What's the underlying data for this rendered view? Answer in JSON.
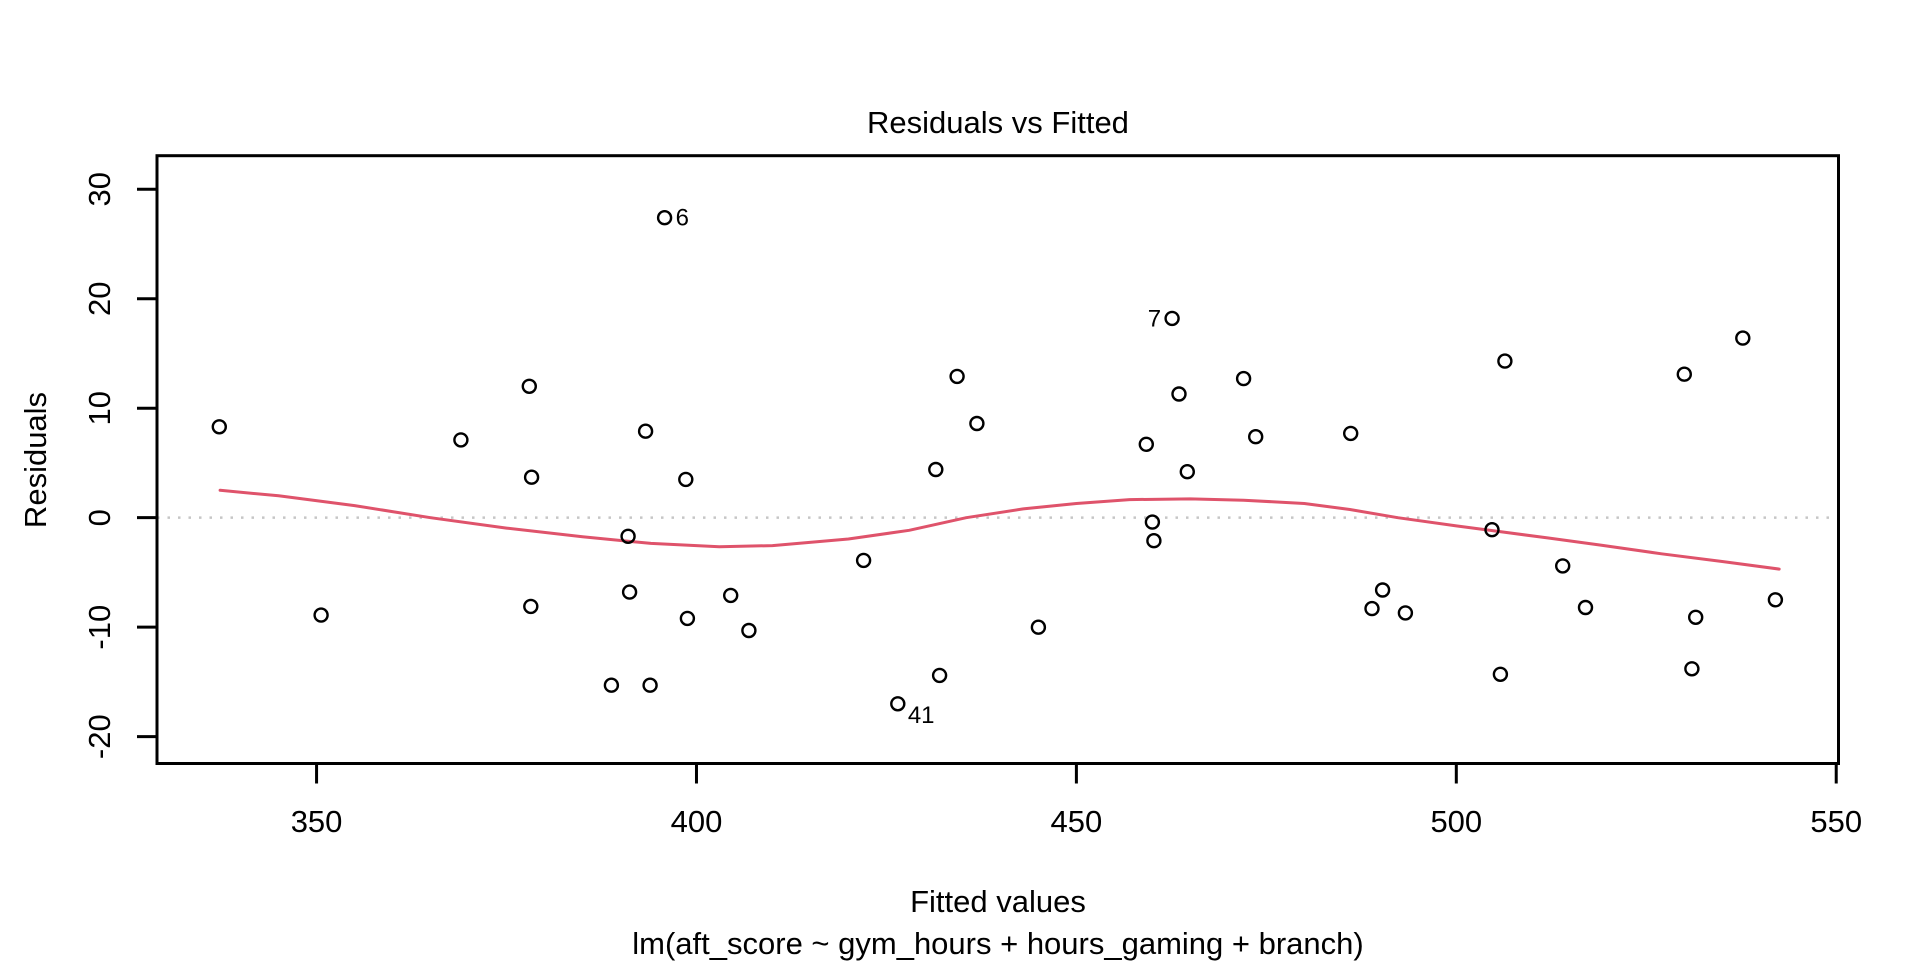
{
  "figure": {
    "title": "Residuals vs Fitted",
    "xlabel": "Fitted values",
    "ylabel": "Residuals",
    "caption": "lm(aft_score ~ gym_hours + hours_gaming + branch)"
  },
  "chart_data": {
    "type": "scatter",
    "title": "Residuals vs Fitted",
    "xlabel": "Fitted values",
    "ylabel": "Residuals",
    "caption": "lm(aft_score ~ gym_hours + hours_gaming + branch)",
    "x_ticks": [
      350,
      400,
      450,
      500,
      550
    ],
    "y_ticks": [
      -20,
      -10,
      0,
      10,
      20,
      30
    ],
    "xlim": [
      329.0,
      550.3
    ],
    "ylim": [
      -22.45,
      33.06
    ],
    "grid": false,
    "legend": null,
    "marker": {
      "shape": "open-circle",
      "color": "#000000",
      "radius_px": 6.5
    },
    "zero_line": {
      "y": 0,
      "style": "dotted",
      "color": "#c6c6c6"
    },
    "points": [
      [
        337.2,
        8.3
      ],
      [
        350.6,
        -8.9
      ],
      [
        369.0,
        7.1
      ],
      [
        378.0,
        12.0
      ],
      [
        378.2,
        -8.1
      ],
      [
        378.3,
        3.7
      ],
      [
        388.8,
        -15.3
      ],
      [
        391.0,
        -1.7
      ],
      [
        391.2,
        -6.8
      ],
      [
        393.3,
        7.9
      ],
      [
        393.9,
        -15.3
      ],
      [
        395.8,
        27.4
      ],
      [
        398.6,
        3.5
      ],
      [
        398.8,
        -9.2
      ],
      [
        404.5,
        -7.1
      ],
      [
        406.9,
        -10.3
      ],
      [
        422.0,
        -3.9
      ],
      [
        426.5,
        -17.0
      ],
      [
        431.5,
        4.4
      ],
      [
        432.0,
        -14.4
      ],
      [
        434.3,
        12.9
      ],
      [
        436.9,
        8.6
      ],
      [
        445.0,
        -10.0
      ],
      [
        459.2,
        6.7
      ],
      [
        460.0,
        -0.4
      ],
      [
        460.2,
        -2.1
      ],
      [
        462.6,
        18.2
      ],
      [
        463.5,
        11.3
      ],
      [
        464.6,
        4.2
      ],
      [
        472.0,
        12.7
      ],
      [
        473.6,
        7.4
      ],
      [
        486.1,
        7.7
      ],
      [
        488.9,
        -8.3
      ],
      [
        490.3,
        -6.6
      ],
      [
        493.3,
        -8.7
      ],
      [
        504.7,
        -1.1
      ],
      [
        505.8,
        -14.3
      ],
      [
        506.4,
        14.3
      ],
      [
        514.0,
        -4.4
      ],
      [
        517.0,
        -8.2
      ],
      [
        530.0,
        13.1
      ],
      [
        531.5,
        -9.1
      ],
      [
        531.0,
        -13.8
      ],
      [
        537.7,
        16.4
      ],
      [
        542.0,
        -7.5
      ]
    ],
    "labeled_points": [
      {
        "label": "6",
        "x": 395.8,
        "y": 27.4,
        "side": "right"
      },
      {
        "label": "7",
        "x": 462.6,
        "y": 18.2,
        "side": "left"
      },
      {
        "label": "41",
        "x": 426.5,
        "y": -17.0,
        "side": "right-below"
      }
    ],
    "smooth_line": {
      "name": "lowess",
      "color": "#df536b",
      "points": [
        [
          337.3,
          2.5
        ],
        [
          345,
          2.0
        ],
        [
          355,
          1.1
        ],
        [
          365,
          0.0
        ],
        [
          375,
          -0.95
        ],
        [
          385,
          -1.75
        ],
        [
          394,
          -2.35
        ],
        [
          403,
          -2.65
        ],
        [
          410,
          -2.55
        ],
        [
          420,
          -1.95
        ],
        [
          428,
          -1.15
        ],
        [
          435.5,
          0.0
        ],
        [
          443,
          0.8
        ],
        [
          450,
          1.3
        ],
        [
          457,
          1.65
        ],
        [
          465,
          1.72
        ],
        [
          472,
          1.6
        ],
        [
          480,
          1.3
        ],
        [
          486,
          0.75
        ],
        [
          492.3,
          0.0
        ],
        [
          500,
          -0.75
        ],
        [
          506,
          -1.3
        ],
        [
          512,
          -1.85
        ],
        [
          519,
          -2.5
        ],
        [
          527,
          -3.3
        ],
        [
          535,
          -4.0
        ],
        [
          542.5,
          -4.7
        ]
      ]
    },
    "colors": {
      "points": "#000000",
      "smooth": "#df536b",
      "zero_line": "#c6c6c6",
      "axis": "#000000",
      "background": "#ffffff"
    }
  }
}
